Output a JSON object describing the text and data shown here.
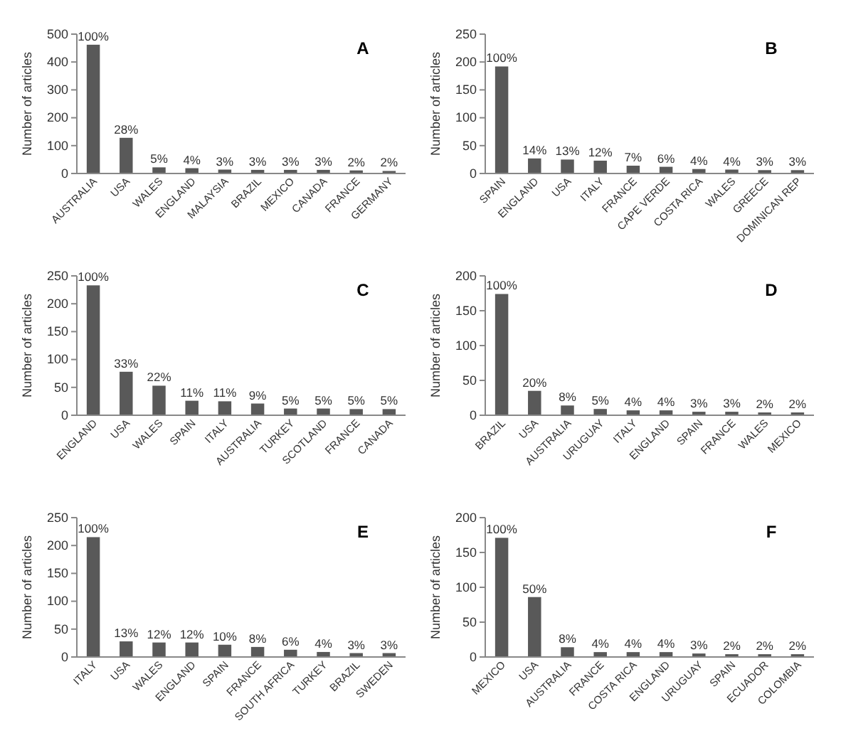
{
  "chart_data": [
    {
      "type": "bar",
      "title": "A",
      "ylabel": "Number of articles",
      "categories": [
        "AUSTRALIA",
        "USA",
        "WALES",
        "ENGLAND",
        "MALAYSIA",
        "BRAZIL",
        "MEXICO",
        "CANADA",
        "FRANCE",
        "GERMANY"
      ],
      "values": [
        462,
        128,
        22,
        19,
        14,
        13,
        13,
        13,
        11,
        9
      ],
      "annotations": [
        {
          "text": "100%",
          "x": "AUSTRALIA",
          "y": 462
        },
        {
          "text": "28%",
          "x": "USA",
          "y": 128
        },
        {
          "text": "5%",
          "x": "WALES",
          "y": 22
        },
        {
          "text": "4%",
          "x": "ENGLAND",
          "y": 19
        },
        {
          "text": "3%",
          "x": "MALAYSIA",
          "y": 14
        },
        {
          "text": "3%",
          "x": "BRAZIL",
          "y": 13
        },
        {
          "text": "3%",
          "x": "MEXICO",
          "y": 13
        },
        {
          "text": "3%",
          "x": "CANADA",
          "y": 13
        },
        {
          "text": "2%",
          "x": "FRANCE",
          "y": 11
        },
        {
          "text": "2%",
          "x": "GERMANY",
          "y": 9
        }
      ],
      "color": "#595959",
      "ylim": [
        0,
        500
      ],
      "yticks": [
        0,
        100,
        200,
        300,
        400,
        500
      ],
      "grid": false
    },
    {
      "type": "bar",
      "title": "B",
      "ylabel": "Number of articles",
      "categories": [
        "SPAIN",
        "ENGLAND",
        "USA",
        "ITALY",
        "FRANCE",
        "CAPE VERDE",
        "COSTA RICA",
        "WALES",
        "GREECE",
        "DOMINICAN REP"
      ],
      "values": [
        192,
        27,
        25,
        23,
        14,
        12,
        8,
        7,
        6,
        6
      ],
      "annotations": [
        {
          "text": "100%",
          "x": "SPAIN",
          "y": 192
        },
        {
          "text": "14%",
          "x": "ENGLAND",
          "y": 27
        },
        {
          "text": "13%",
          "x": "USA",
          "y": 25
        },
        {
          "text": "12%",
          "x": "ITALY",
          "y": 23
        },
        {
          "text": "7%",
          "x": "FRANCE",
          "y": 14
        },
        {
          "text": "6%",
          "x": "CAPE VERDE",
          "y": 12
        },
        {
          "text": "4%",
          "x": "COSTA RICA",
          "y": 8
        },
        {
          "text": "4%",
          "x": "WALES",
          "y": 7
        },
        {
          "text": "3%",
          "x": "GREECE",
          "y": 6
        },
        {
          "text": "3%",
          "x": "DOMINICAN REP",
          "y": 6
        }
      ],
      "color": "#595959",
      "ylim": [
        0,
        250
      ],
      "yticks": [
        0,
        50,
        100,
        150,
        200,
        250
      ],
      "grid": false
    },
    {
      "type": "bar",
      "title": "C",
      "ylabel": "Number of articles",
      "categories": [
        "ENGLAND",
        "USA",
        "WALES",
        "SPAIN",
        "ITALY",
        "AUSTRALIA",
        "TURKEY",
        "SCOTLAND",
        "FRANCE",
        "CANADA"
      ],
      "values": [
        233,
        78,
        53,
        26,
        25,
        21,
        12,
        12,
        11,
        11
      ],
      "annotations": [
        {
          "text": "100%",
          "x": "ENGLAND",
          "y": 233
        },
        {
          "text": "33%",
          "x": "USA",
          "y": 78
        },
        {
          "text": "22%",
          "x": "WALES",
          "y": 53
        },
        {
          "text": "11%",
          "x": "SPAIN",
          "y": 26
        },
        {
          "text": "11%",
          "x": "ITALY",
          "y": 25
        },
        {
          "text": "9%",
          "x": "AUSTRALIA",
          "y": 21
        },
        {
          "text": "5%",
          "x": "TURKEY",
          "y": 12
        },
        {
          "text": "5%",
          "x": "SCOTLAND",
          "y": 12
        },
        {
          "text": "5%",
          "x": "FRANCE",
          "y": 11
        },
        {
          "text": "5%",
          "x": "CANADA",
          "y": 11
        }
      ],
      "color": "#595959",
      "ylim": [
        0,
        250
      ],
      "yticks": [
        0,
        50,
        100,
        150,
        200,
        250
      ],
      "grid": false
    },
    {
      "type": "bar",
      "title": "D",
      "ylabel": "Number of articles",
      "categories": [
        "BRAZIL",
        "USA",
        "AUSTRALIA",
        "URUGUAY",
        "ITALY",
        "ENGLAND",
        "SPAIN",
        "FRANCE",
        "WALES",
        "MEXICO"
      ],
      "values": [
        174,
        35,
        14,
        9,
        7,
        7,
        5,
        5,
        4,
        4
      ],
      "annotations": [
        {
          "text": "100%",
          "x": "BRAZIL",
          "y": 174
        },
        {
          "text": "20%",
          "x": "USA",
          "y": 35
        },
        {
          "text": "8%",
          "x": "AUSTRALIA",
          "y": 14
        },
        {
          "text": "5%",
          "x": "URUGUAY",
          "y": 9
        },
        {
          "text": "4%",
          "x": "ITALY",
          "y": 7
        },
        {
          "text": "4%",
          "x": "ENGLAND",
          "y": 7
        },
        {
          "text": "3%",
          "x": "SPAIN",
          "y": 5
        },
        {
          "text": "3%",
          "x": "FRANCE",
          "y": 5
        },
        {
          "text": "2%",
          "x": "WALES",
          "y": 4
        },
        {
          "text": "2%",
          "x": "MEXICO",
          "y": 4
        }
      ],
      "color": "#595959",
      "ylim": [
        0,
        200
      ],
      "yticks": [
        0,
        50,
        100,
        150,
        200
      ],
      "grid": false
    },
    {
      "type": "bar",
      "title": "E",
      "ylabel": "Number of articles",
      "categories": [
        "ITALY",
        "USA",
        "WALES",
        "ENGLAND",
        "SPAIN",
        "FRANCE",
        "SOUTH AFRICA",
        "TURKEY",
        "BRAZIL",
        "SWEDEN"
      ],
      "values": [
        215,
        28,
        26,
        26,
        22,
        18,
        13,
        9,
        7,
        7
      ],
      "annotations": [
        {
          "text": "100%",
          "x": "ITALY",
          "y": 215
        },
        {
          "text": "13%",
          "x": "USA",
          "y": 28
        },
        {
          "text": "12%",
          "x": "WALES",
          "y": 26
        },
        {
          "text": "12%",
          "x": "ENGLAND",
          "y": 26
        },
        {
          "text": "10%",
          "x": "SPAIN",
          "y": 22
        },
        {
          "text": "8%",
          "x": "FRANCE",
          "y": 18
        },
        {
          "text": "6%",
          "x": "SOUTH AFRICA",
          "y": 13
        },
        {
          "text": "4%",
          "x": "TURKEY",
          "y": 9
        },
        {
          "text": "3%",
          "x": "BRAZIL",
          "y": 7
        },
        {
          "text": "3%",
          "x": "SWEDEN",
          "y": 7
        }
      ],
      "color": "#595959",
      "ylim": [
        0,
        250
      ],
      "yticks": [
        0,
        50,
        100,
        150,
        200,
        250
      ],
      "grid": false
    },
    {
      "type": "bar",
      "title": "F",
      "ylabel": "Number of articles",
      "categories": [
        "MEXICO",
        "USA",
        "AUSTRALIA",
        "FRANCE",
        "COSTA RICA",
        "ENGLAND",
        "URUGUAY",
        "SPAIN",
        "ECUADOR",
        "COLOMBIA"
      ],
      "values": [
        171,
        86,
        14,
        7,
        7,
        7,
        5,
        4,
        4,
        4
      ],
      "annotations": [
        {
          "text": "100%",
          "x": "MEXICO",
          "y": 171
        },
        {
          "text": "50%",
          "x": "USA",
          "y": 86
        },
        {
          "text": "8%",
          "x": "AUSTRALIA",
          "y": 14
        },
        {
          "text": "4%",
          "x": "FRANCE",
          "y": 7
        },
        {
          "text": "4%",
          "x": "COSTA RICA",
          "y": 7
        },
        {
          "text": "4%",
          "x": "ENGLAND",
          "y": 7
        },
        {
          "text": "3%",
          "x": "URUGUAY",
          "y": 5
        },
        {
          "text": "2%",
          "x": "SPAIN",
          "y": 4
        },
        {
          "text": "2%",
          "x": "ECUADOR",
          "y": 4
        },
        {
          "text": "2%",
          "x": "COLOMBIA",
          "y": 4
        }
      ],
      "color": "#595959",
      "ylim": [
        0,
        200
      ],
      "yticks": [
        0,
        50,
        100,
        150,
        200
      ],
      "grid": false
    }
  ]
}
